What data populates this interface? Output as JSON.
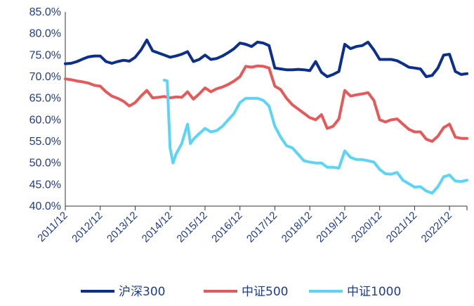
{
  "chart_data": {
    "type": "line",
    "title": "",
    "xlabel": "",
    "ylabel": "",
    "ylim": [
      0.4,
      0.85
    ],
    "y_ticks": [
      "85.0%",
      "80.0%",
      "75.0%",
      "70.0%",
      "65.0%",
      "60.0%",
      "55.0%",
      "50.0%",
      "45.0%",
      "40.0%"
    ],
    "x_ticks": [
      "2011/12",
      "2012/12",
      "2013/12",
      "2014/12",
      "2015/12",
      "2016/12",
      "2017/12",
      "2018/12",
      "2019/12",
      "2020/12",
      "2021/12",
      "2022/12"
    ],
    "x_range": [
      "2011/12",
      "2023/06"
    ],
    "grid": false,
    "legend_position": "bottom",
    "series": [
      {
        "name": "沪深300",
        "color": "#0b2f8a",
        "points": [
          [
            "2011/12",
            0.73
          ],
          [
            "2012/02",
            0.731
          ],
          [
            "2012/04",
            0.735
          ],
          [
            "2012/06",
            0.741
          ],
          [
            "2012/08",
            0.746
          ],
          [
            "2012/10",
            0.748
          ],
          [
            "2012/12",
            0.748
          ],
          [
            "2013/02",
            0.735
          ],
          [
            "2013/04",
            0.731
          ],
          [
            "2013/06",
            0.735
          ],
          [
            "2013/08",
            0.738
          ],
          [
            "2013/10",
            0.736
          ],
          [
            "2013/12",
            0.745
          ],
          [
            "2014/02",
            0.762
          ],
          [
            "2014/04",
            0.785
          ],
          [
            "2014/06",
            0.76
          ],
          [
            "2014/08",
            0.755
          ],
          [
            "2014/10",
            0.75
          ],
          [
            "2014/12",
            0.745
          ],
          [
            "2015/02",
            0.748
          ],
          [
            "2015/04",
            0.752
          ],
          [
            "2015/06",
            0.758
          ],
          [
            "2015/08",
            0.735
          ],
          [
            "2015/10",
            0.74
          ],
          [
            "2015/12",
            0.75
          ],
          [
            "2016/02",
            0.74
          ],
          [
            "2016/04",
            0.742
          ],
          [
            "2016/06",
            0.748
          ],
          [
            "2016/08",
            0.756
          ],
          [
            "2016/10",
            0.765
          ],
          [
            "2016/12",
            0.778
          ],
          [
            "2017/02",
            0.775
          ],
          [
            "2017/04",
            0.77
          ],
          [
            "2017/06",
            0.78
          ],
          [
            "2017/08",
            0.778
          ],
          [
            "2017/10",
            0.772
          ],
          [
            "2017/12",
            0.72
          ],
          [
            "2018/02",
            0.718
          ],
          [
            "2018/04",
            0.716
          ],
          [
            "2018/06",
            0.716
          ],
          [
            "2018/08",
            0.717
          ],
          [
            "2018/10",
            0.716
          ],
          [
            "2018/12",
            0.714
          ],
          [
            "2019/02",
            0.735
          ],
          [
            "2019/04",
            0.71
          ],
          [
            "2019/06",
            0.7
          ],
          [
            "2019/08",
            0.705
          ],
          [
            "2019/10",
            0.712
          ],
          [
            "2019/12",
            0.775
          ],
          [
            "2020/02",
            0.765
          ],
          [
            "2020/04",
            0.77
          ],
          [
            "2020/06",
            0.772
          ],
          [
            "2020/08",
            0.78
          ],
          [
            "2020/10",
            0.762
          ],
          [
            "2020/12",
            0.74
          ],
          [
            "2021/02",
            0.74
          ],
          [
            "2021/04",
            0.74
          ],
          [
            "2021/06",
            0.737
          ],
          [
            "2021/08",
            0.73
          ],
          [
            "2021/10",
            0.722
          ],
          [
            "2021/12",
            0.72
          ],
          [
            "2022/02",
            0.718
          ],
          [
            "2022/04",
            0.7
          ],
          [
            "2022/06",
            0.703
          ],
          [
            "2022/08",
            0.72
          ],
          [
            "2022/10",
            0.75
          ],
          [
            "2022/12",
            0.752
          ],
          [
            "2023/02",
            0.712
          ],
          [
            "2023/04",
            0.705
          ],
          [
            "2023/06",
            0.707
          ]
        ]
      },
      {
        "name": "中证500",
        "color": "#e45a5a",
        "points": [
          [
            "2011/12",
            0.695
          ],
          [
            "2012/02",
            0.693
          ],
          [
            "2012/04",
            0.69
          ],
          [
            "2012/06",
            0.688
          ],
          [
            "2012/08",
            0.685
          ],
          [
            "2012/10",
            0.68
          ],
          [
            "2012/12",
            0.678
          ],
          [
            "2013/02",
            0.665
          ],
          [
            "2013/04",
            0.655
          ],
          [
            "2013/06",
            0.65
          ],
          [
            "2013/08",
            0.643
          ],
          [
            "2013/10",
            0.632
          ],
          [
            "2013/12",
            0.64
          ],
          [
            "2014/02",
            0.655
          ],
          [
            "2014/04",
            0.668
          ],
          [
            "2014/06",
            0.651
          ],
          [
            "2014/08",
            0.652
          ],
          [
            "2014/10",
            0.654
          ],
          [
            "2014/12",
            0.651
          ],
          [
            "2015/02",
            0.653
          ],
          [
            "2015/04",
            0.652
          ],
          [
            "2015/06",
            0.665
          ],
          [
            "2015/08",
            0.648
          ],
          [
            "2015/10",
            0.66
          ],
          [
            "2015/12",
            0.674
          ],
          [
            "2016/02",
            0.665
          ],
          [
            "2016/04",
            0.672
          ],
          [
            "2016/06",
            0.676
          ],
          [
            "2016/08",
            0.682
          ],
          [
            "2016/10",
            0.69
          ],
          [
            "2016/12",
            0.7
          ],
          [
            "2017/02",
            0.724
          ],
          [
            "2017/04",
            0.722
          ],
          [
            "2017/06",
            0.725
          ],
          [
            "2017/08",
            0.724
          ],
          [
            "2017/10",
            0.72
          ],
          [
            "2017/12",
            0.678
          ],
          [
            "2018/02",
            0.67
          ],
          [
            "2018/04",
            0.65
          ],
          [
            "2018/06",
            0.635
          ],
          [
            "2018/08",
            0.625
          ],
          [
            "2018/10",
            0.615
          ],
          [
            "2018/12",
            0.605
          ],
          [
            "2019/02",
            0.6
          ],
          [
            "2019/04",
            0.612
          ],
          [
            "2019/06",
            0.58
          ],
          [
            "2019/08",
            0.585
          ],
          [
            "2019/10",
            0.602
          ],
          [
            "2019/12",
            0.668
          ],
          [
            "2020/02",
            0.655
          ],
          [
            "2020/04",
            0.658
          ],
          [
            "2020/06",
            0.66
          ],
          [
            "2020/08",
            0.663
          ],
          [
            "2020/10",
            0.645
          ],
          [
            "2020/12",
            0.6
          ],
          [
            "2021/02",
            0.595
          ],
          [
            "2021/04",
            0.6
          ],
          [
            "2021/06",
            0.602
          ],
          [
            "2021/08",
            0.59
          ],
          [
            "2021/10",
            0.578
          ],
          [
            "2021/12",
            0.572
          ],
          [
            "2022/02",
            0.572
          ],
          [
            "2022/04",
            0.555
          ],
          [
            "2022/06",
            0.55
          ],
          [
            "2022/08",
            0.562
          ],
          [
            "2022/10",
            0.582
          ],
          [
            "2022/12",
            0.59
          ],
          [
            "2023/02",
            0.56
          ],
          [
            "2023/04",
            0.557
          ],
          [
            "2023/06",
            0.557
          ]
        ]
      },
      {
        "name": "中证1000",
        "color": "#5dd3f5",
        "points": [
          [
            "2014/10",
            0.692
          ],
          [
            "2014/11",
            0.69
          ],
          [
            "2014/12",
            0.535
          ],
          [
            "2015/01",
            0.5
          ],
          [
            "2015/02",
            0.52
          ],
          [
            "2015/04",
            0.545
          ],
          [
            "2015/06",
            0.59
          ],
          [
            "2015/07",
            0.545
          ],
          [
            "2015/08",
            0.555
          ],
          [
            "2015/10",
            0.568
          ],
          [
            "2015/12",
            0.58
          ],
          [
            "2016/02",
            0.572
          ],
          [
            "2016/04",
            0.575
          ],
          [
            "2016/06",
            0.585
          ],
          [
            "2016/08",
            0.6
          ],
          [
            "2016/10",
            0.615
          ],
          [
            "2016/12",
            0.64
          ],
          [
            "2017/02",
            0.65
          ],
          [
            "2017/04",
            0.65
          ],
          [
            "2017/06",
            0.65
          ],
          [
            "2017/08",
            0.645
          ],
          [
            "2017/10",
            0.632
          ],
          [
            "2017/12",
            0.585
          ],
          [
            "2018/02",
            0.56
          ],
          [
            "2018/04",
            0.54
          ],
          [
            "2018/06",
            0.535
          ],
          [
            "2018/08",
            0.52
          ],
          [
            "2018/10",
            0.505
          ],
          [
            "2018/12",
            0.502
          ],
          [
            "2019/02",
            0.5
          ],
          [
            "2019/04",
            0.5
          ],
          [
            "2019/06",
            0.49
          ],
          [
            "2019/08",
            0.49
          ],
          [
            "2019/10",
            0.488
          ],
          [
            "2019/12",
            0.528
          ],
          [
            "2020/02",
            0.513
          ],
          [
            "2020/04",
            0.508
          ],
          [
            "2020/06",
            0.508
          ],
          [
            "2020/08",
            0.505
          ],
          [
            "2020/10",
            0.502
          ],
          [
            "2020/12",
            0.485
          ],
          [
            "2021/02",
            0.475
          ],
          [
            "2021/04",
            0.474
          ],
          [
            "2021/06",
            0.478
          ],
          [
            "2021/08",
            0.46
          ],
          [
            "2021/10",
            0.452
          ],
          [
            "2021/12",
            0.444
          ],
          [
            "2022/02",
            0.445
          ],
          [
            "2022/04",
            0.435
          ],
          [
            "2022/06",
            0.43
          ],
          [
            "2022/08",
            0.445
          ],
          [
            "2022/10",
            0.468
          ],
          [
            "2022/12",
            0.472
          ],
          [
            "2023/02",
            0.458
          ],
          [
            "2023/04",
            0.457
          ],
          [
            "2023/06",
            0.46
          ]
        ]
      }
    ]
  }
}
